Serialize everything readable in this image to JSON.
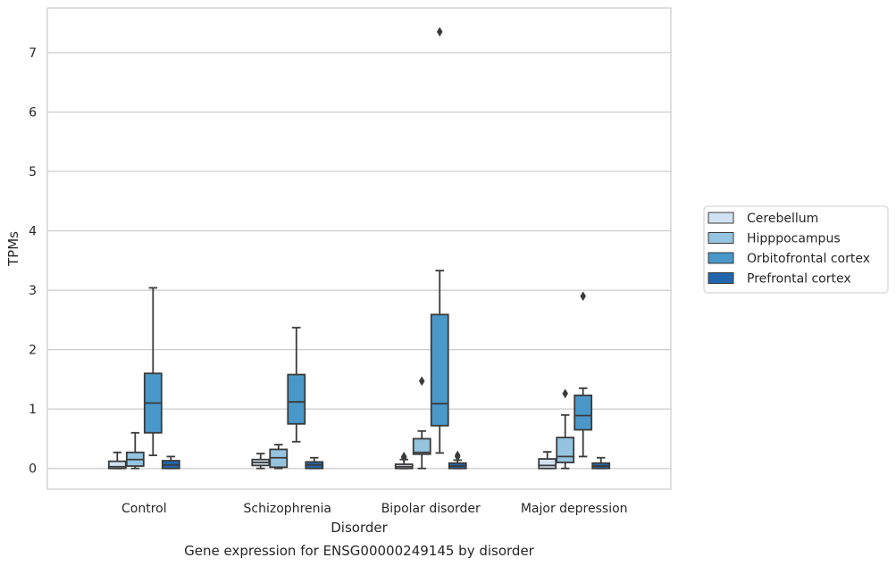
{
  "caption": "Gene expression for ENSG00000249145 by disorder",
  "chart_data": {
    "type": "boxplot",
    "xlabel": "Disorder",
    "ylabel": "TPMs",
    "ylim": [
      -0.35,
      7.75
    ],
    "yticks": [
      0,
      1,
      2,
      3,
      4,
      5,
      6,
      7
    ],
    "grid": "horizontal",
    "legend_placement": "right",
    "categories": [
      "Control",
      "Schizophrenia",
      "Bipolar disorder",
      "Major depression"
    ],
    "series": [
      {
        "name": "Cerebellum",
        "color": "#d0e1f2",
        "boxes": [
          {
            "whislo": 0.0,
            "q1": 0.0,
            "med": 0.03,
            "q3": 0.12,
            "whishi": 0.27,
            "fliers": []
          },
          {
            "whislo": 0.0,
            "q1": 0.05,
            "med": 0.1,
            "q3": 0.15,
            "whishi": 0.25,
            "fliers": []
          },
          {
            "whislo": 0.0,
            "q1": 0.0,
            "med": 0.03,
            "q3": 0.07,
            "whishi": 0.15,
            "fliers": [
              0.2,
              0.18
            ]
          },
          {
            "whislo": 0.0,
            "q1": 0.0,
            "med": 0.05,
            "q3": 0.16,
            "whishi": 0.28,
            "fliers": []
          }
        ]
      },
      {
        "name": "Hipppocampus",
        "color": "#94c4df",
        "boxes": [
          {
            "whislo": 0.0,
            "q1": 0.04,
            "med": 0.15,
            "q3": 0.27,
            "whishi": 0.6,
            "fliers": []
          },
          {
            "whislo": 0.0,
            "q1": 0.02,
            "med": 0.18,
            "q3": 0.32,
            "whishi": 0.4,
            "fliers": []
          },
          {
            "whislo": 0.0,
            "q1": 0.24,
            "med": 0.27,
            "q3": 0.5,
            "whishi": 0.63,
            "fliers": [
              1.47
            ]
          },
          {
            "whislo": 0.0,
            "q1": 0.1,
            "med": 0.2,
            "q3": 0.52,
            "whishi": 0.9,
            "fliers": [
              1.26
            ]
          }
        ]
      },
      {
        "name": "Orbitofrontal cortex",
        "color": "#4a98c9",
        "boxes": [
          {
            "whislo": 0.22,
            "q1": 0.6,
            "med": 1.1,
            "q3": 1.6,
            "whishi": 3.04,
            "fliers": []
          },
          {
            "whislo": 0.45,
            "q1": 0.75,
            "med": 1.12,
            "q3": 1.58,
            "whishi": 2.37,
            "fliers": []
          },
          {
            "whislo": 0.26,
            "q1": 0.72,
            "med": 1.09,
            "q3": 2.59,
            "whishi": 3.33,
            "fliers": [
              7.35
            ]
          },
          {
            "whislo": 0.2,
            "q1": 0.65,
            "med": 0.89,
            "q3": 1.23,
            "whishi": 1.35,
            "fliers": [
              2.9
            ]
          }
        ]
      },
      {
        "name": "Prefrontal cortex",
        "color": "#2166ac",
        "boxes": [
          {
            "whislo": 0.0,
            "q1": 0.0,
            "med": 0.06,
            "q3": 0.13,
            "whishi": 0.2,
            "fliers": []
          },
          {
            "whislo": 0.0,
            "q1": 0.0,
            "med": 0.06,
            "q3": 0.11,
            "whishi": 0.18,
            "fliers": []
          },
          {
            "whislo": 0.0,
            "q1": 0.0,
            "med": 0.04,
            "q3": 0.09,
            "whishi": 0.14,
            "fliers": [
              0.22,
              0.2
            ]
          },
          {
            "whislo": 0.0,
            "q1": 0.0,
            "med": 0.04,
            "q3": 0.09,
            "whishi": 0.18,
            "fliers": []
          }
        ]
      }
    ]
  }
}
